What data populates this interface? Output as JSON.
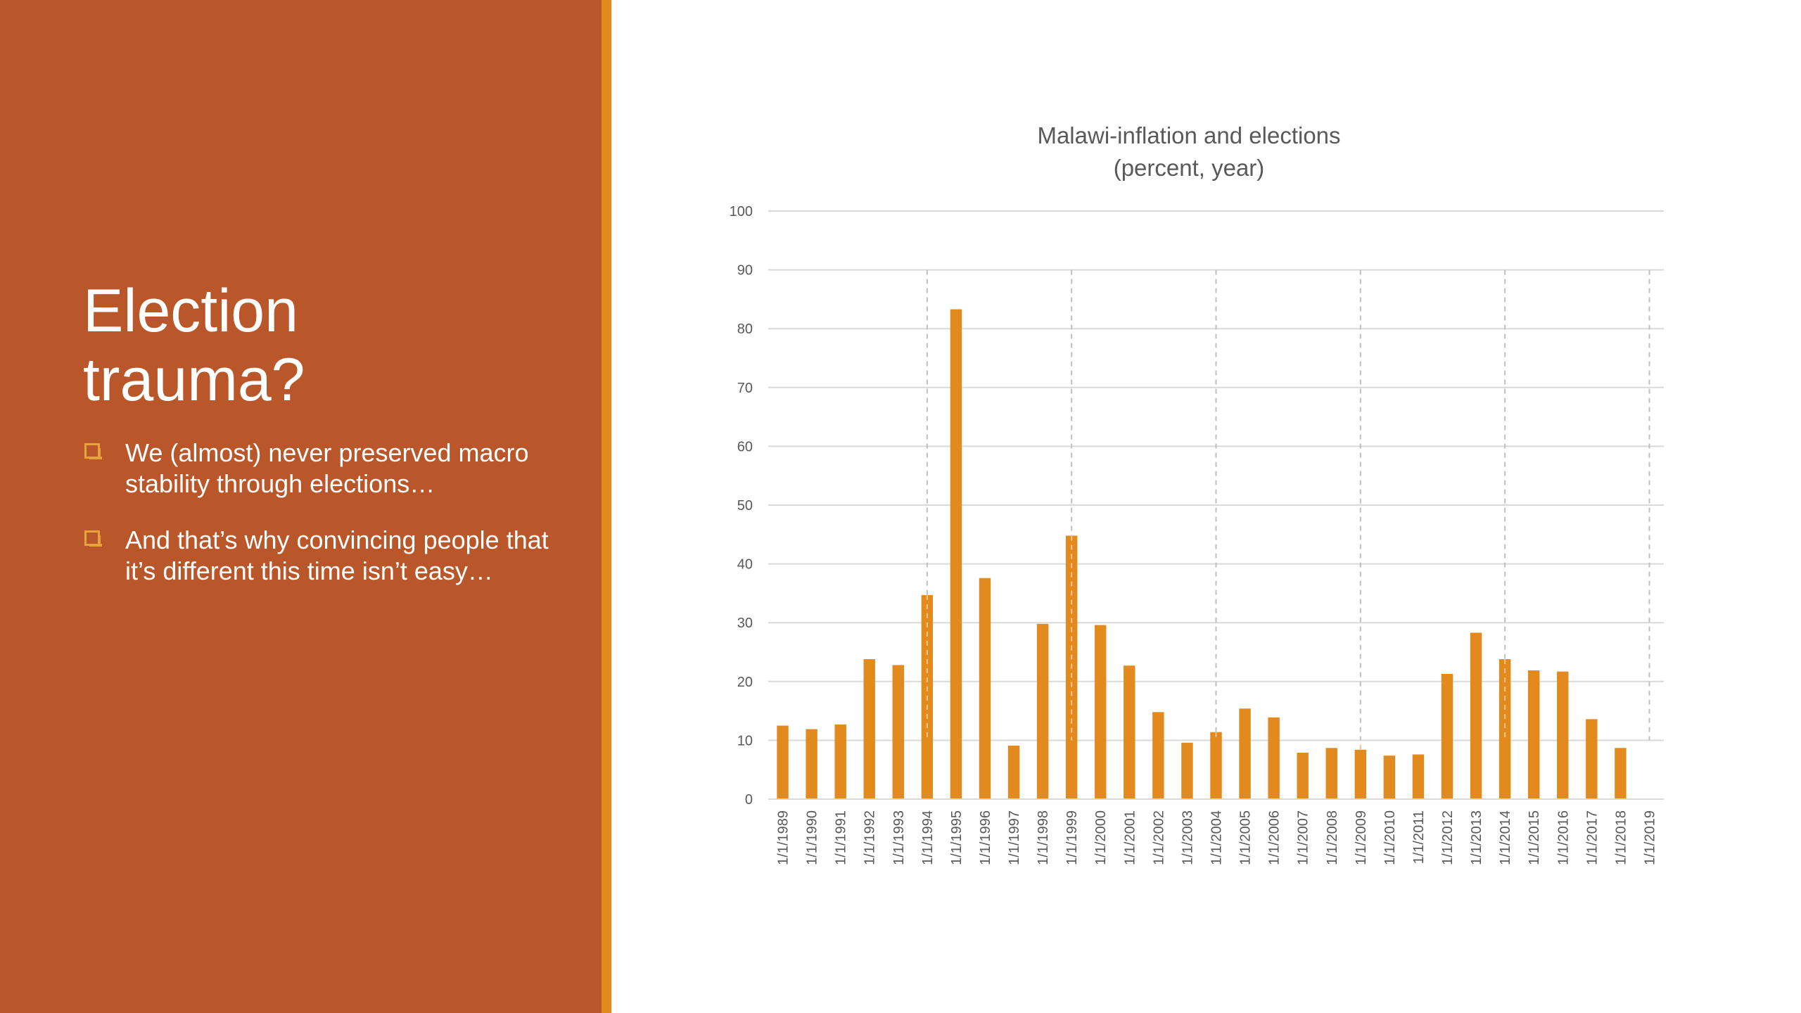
{
  "slide": {
    "title_line1": "Election",
    "title_line2": "trauma?",
    "bullets": [
      "We (almost) never preserved macro stability through elections…",
      "And that’s why convincing people that it’s different this time isn’t easy…"
    ],
    "bullet_icon": "square-bullet-icon"
  },
  "colors": {
    "panel": "#B9572B",
    "accent": "#E38A1E",
    "bar": "#E38A1E",
    "grid": "#D9D9D9",
    "text": "#595959"
  },
  "chart_data": {
    "type": "bar",
    "title_line1": "Malawi-inflation and elections",
    "title_line2": "(percent, year)",
    "categories": [
      "1/1/1989",
      "1/1/1990",
      "1/1/1991",
      "1/1/1992",
      "1/1/1993",
      "1/1/1994",
      "1/1/1995",
      "1/1/1996",
      "1/1/1997",
      "1/1/1998",
      "1/1/1999",
      "1/1/2000",
      "1/1/2001",
      "1/1/2002",
      "1/1/2003",
      "1/1/2004",
      "1/1/2005",
      "1/1/2006",
      "1/1/2007",
      "1/1/2008",
      "1/1/2009",
      "1/1/2010",
      "1/1/2011",
      "1/1/2012",
      "1/1/2013",
      "1/1/2014",
      "1/1/2015",
      "1/1/2016",
      "1/1/2017",
      "1/1/2018",
      "1/1/2019"
    ],
    "values": [
      12.5,
      11.9,
      12.7,
      23.8,
      22.8,
      34.7,
      83.3,
      37.6,
      9.1,
      29.8,
      44.8,
      29.6,
      22.7,
      14.8,
      9.6,
      11.4,
      15.4,
      13.9,
      7.9,
      8.7,
      8.4,
      7.4,
      7.6,
      21.3,
      28.3,
      23.8,
      21.9,
      21.7,
      13.6,
      8.7,
      null
    ],
    "election_years": [
      "1/1/1994",
      "1/1/1999",
      "1/1/2004",
      "1/1/2009",
      "1/1/2014",
      "1/1/2019"
    ],
    "yticks": [
      0,
      10,
      20,
      30,
      40,
      50,
      60,
      70,
      80,
      90,
      100
    ],
    "ylim": [
      0,
      100
    ],
    "election_line_range": [
      10,
      90
    ],
    "grid": true,
    "legend": "none"
  }
}
